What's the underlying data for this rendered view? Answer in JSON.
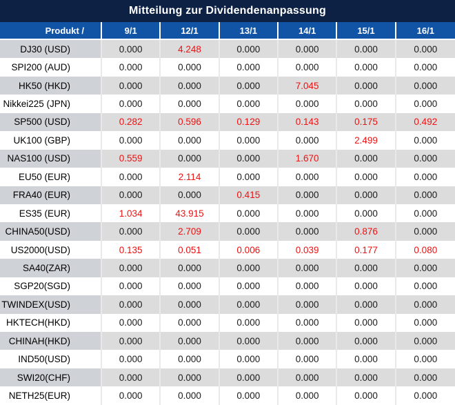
{
  "title": "Mitteilung zur Dividendenanpassung",
  "colors": {
    "title_bar": "#0d2144",
    "header_row": "#1153a4",
    "stripe_label_cell": "#cfd3d7",
    "stripe_data_cell": "#dcdcdc",
    "highlight_value": "#ee1111",
    "normal_value": "#1a1a1a"
  },
  "table": {
    "product_header": "Produkt /",
    "date_columns": [
      "9/1",
      "12/1",
      "13/1",
      "14/1",
      "15/1",
      "16/1"
    ],
    "zero_value": "0.000",
    "rows": [
      {
        "product": "DJ30 (USD)",
        "values": [
          "0.000",
          "4.248",
          "0.000",
          "0.000",
          "0.000",
          "0.000"
        ]
      },
      {
        "product": "SPI200 (AUD)",
        "values": [
          "0.000",
          "0.000",
          "0.000",
          "0.000",
          "0.000",
          "0.000"
        ]
      },
      {
        "product": "HK50 (HKD)",
        "values": [
          "0.000",
          "0.000",
          "0.000",
          "7.045",
          "0.000",
          "0.000"
        ]
      },
      {
        "product": "Nikkei225 (JPN)",
        "values": [
          "0.000",
          "0.000",
          "0.000",
          "0.000",
          "0.000",
          "0.000"
        ]
      },
      {
        "product": "SP500 (USD)",
        "values": [
          "0.282",
          "0.596",
          "0.129",
          "0.143",
          "0.175",
          "0.492"
        ]
      },
      {
        "product": "UK100 (GBP)",
        "values": [
          "0.000",
          "0.000",
          "0.000",
          "0.000",
          "2.499",
          "0.000"
        ]
      },
      {
        "product": "NAS100 (USD)",
        "values": [
          "0.559",
          "0.000",
          "0.000",
          "1.670",
          "0.000",
          "0.000"
        ]
      },
      {
        "product": "EU50 (EUR)",
        "values": [
          "0.000",
          "2.114",
          "0.000",
          "0.000",
          "0.000",
          "0.000"
        ]
      },
      {
        "product": "FRA40 (EUR)",
        "values": [
          "0.000",
          "0.000",
          "0.415",
          "0.000",
          "0.000",
          "0.000"
        ]
      },
      {
        "product": "ES35 (EUR)",
        "values": [
          "1.034",
          "43.915",
          "0.000",
          "0.000",
          "0.000",
          "0.000"
        ]
      },
      {
        "product": "CHINA50(USD)",
        "values": [
          "0.000",
          "2.709",
          "0.000",
          "0.000",
          "0.876",
          "0.000"
        ]
      },
      {
        "product": "US2000(USD)",
        "values": [
          "0.135",
          "0.051",
          "0.006",
          "0.039",
          "0.177",
          "0.080"
        ]
      },
      {
        "product": "SA40(ZAR)",
        "values": [
          "0.000",
          "0.000",
          "0.000",
          "0.000",
          "0.000",
          "0.000"
        ]
      },
      {
        "product": "SGP20(SGD)",
        "values": [
          "0.000",
          "0.000",
          "0.000",
          "0.000",
          "0.000",
          "0.000"
        ]
      },
      {
        "product": "TWINDEX(USD)",
        "values": [
          "0.000",
          "0.000",
          "0.000",
          "0.000",
          "0.000",
          "0.000"
        ]
      },
      {
        "product": "HKTECH(HKD)",
        "values": [
          "0.000",
          "0.000",
          "0.000",
          "0.000",
          "0.000",
          "0.000"
        ]
      },
      {
        "product": "CHINAH(HKD)",
        "values": [
          "0.000",
          "0.000",
          "0.000",
          "0.000",
          "0.000",
          "0.000"
        ]
      },
      {
        "product": "IND50(USD)",
        "values": [
          "0.000",
          "0.000",
          "0.000",
          "0.000",
          "0.000",
          "0.000"
        ]
      },
      {
        "product": "SWI20(CHF)",
        "values": [
          "0.000",
          "0.000",
          "0.000",
          "0.000",
          "0.000",
          "0.000"
        ]
      },
      {
        "product": "NETH25(EUR)",
        "values": [
          "0.000",
          "0.000",
          "0.000",
          "0.000",
          "0.000",
          "0.000"
        ]
      }
    ]
  }
}
